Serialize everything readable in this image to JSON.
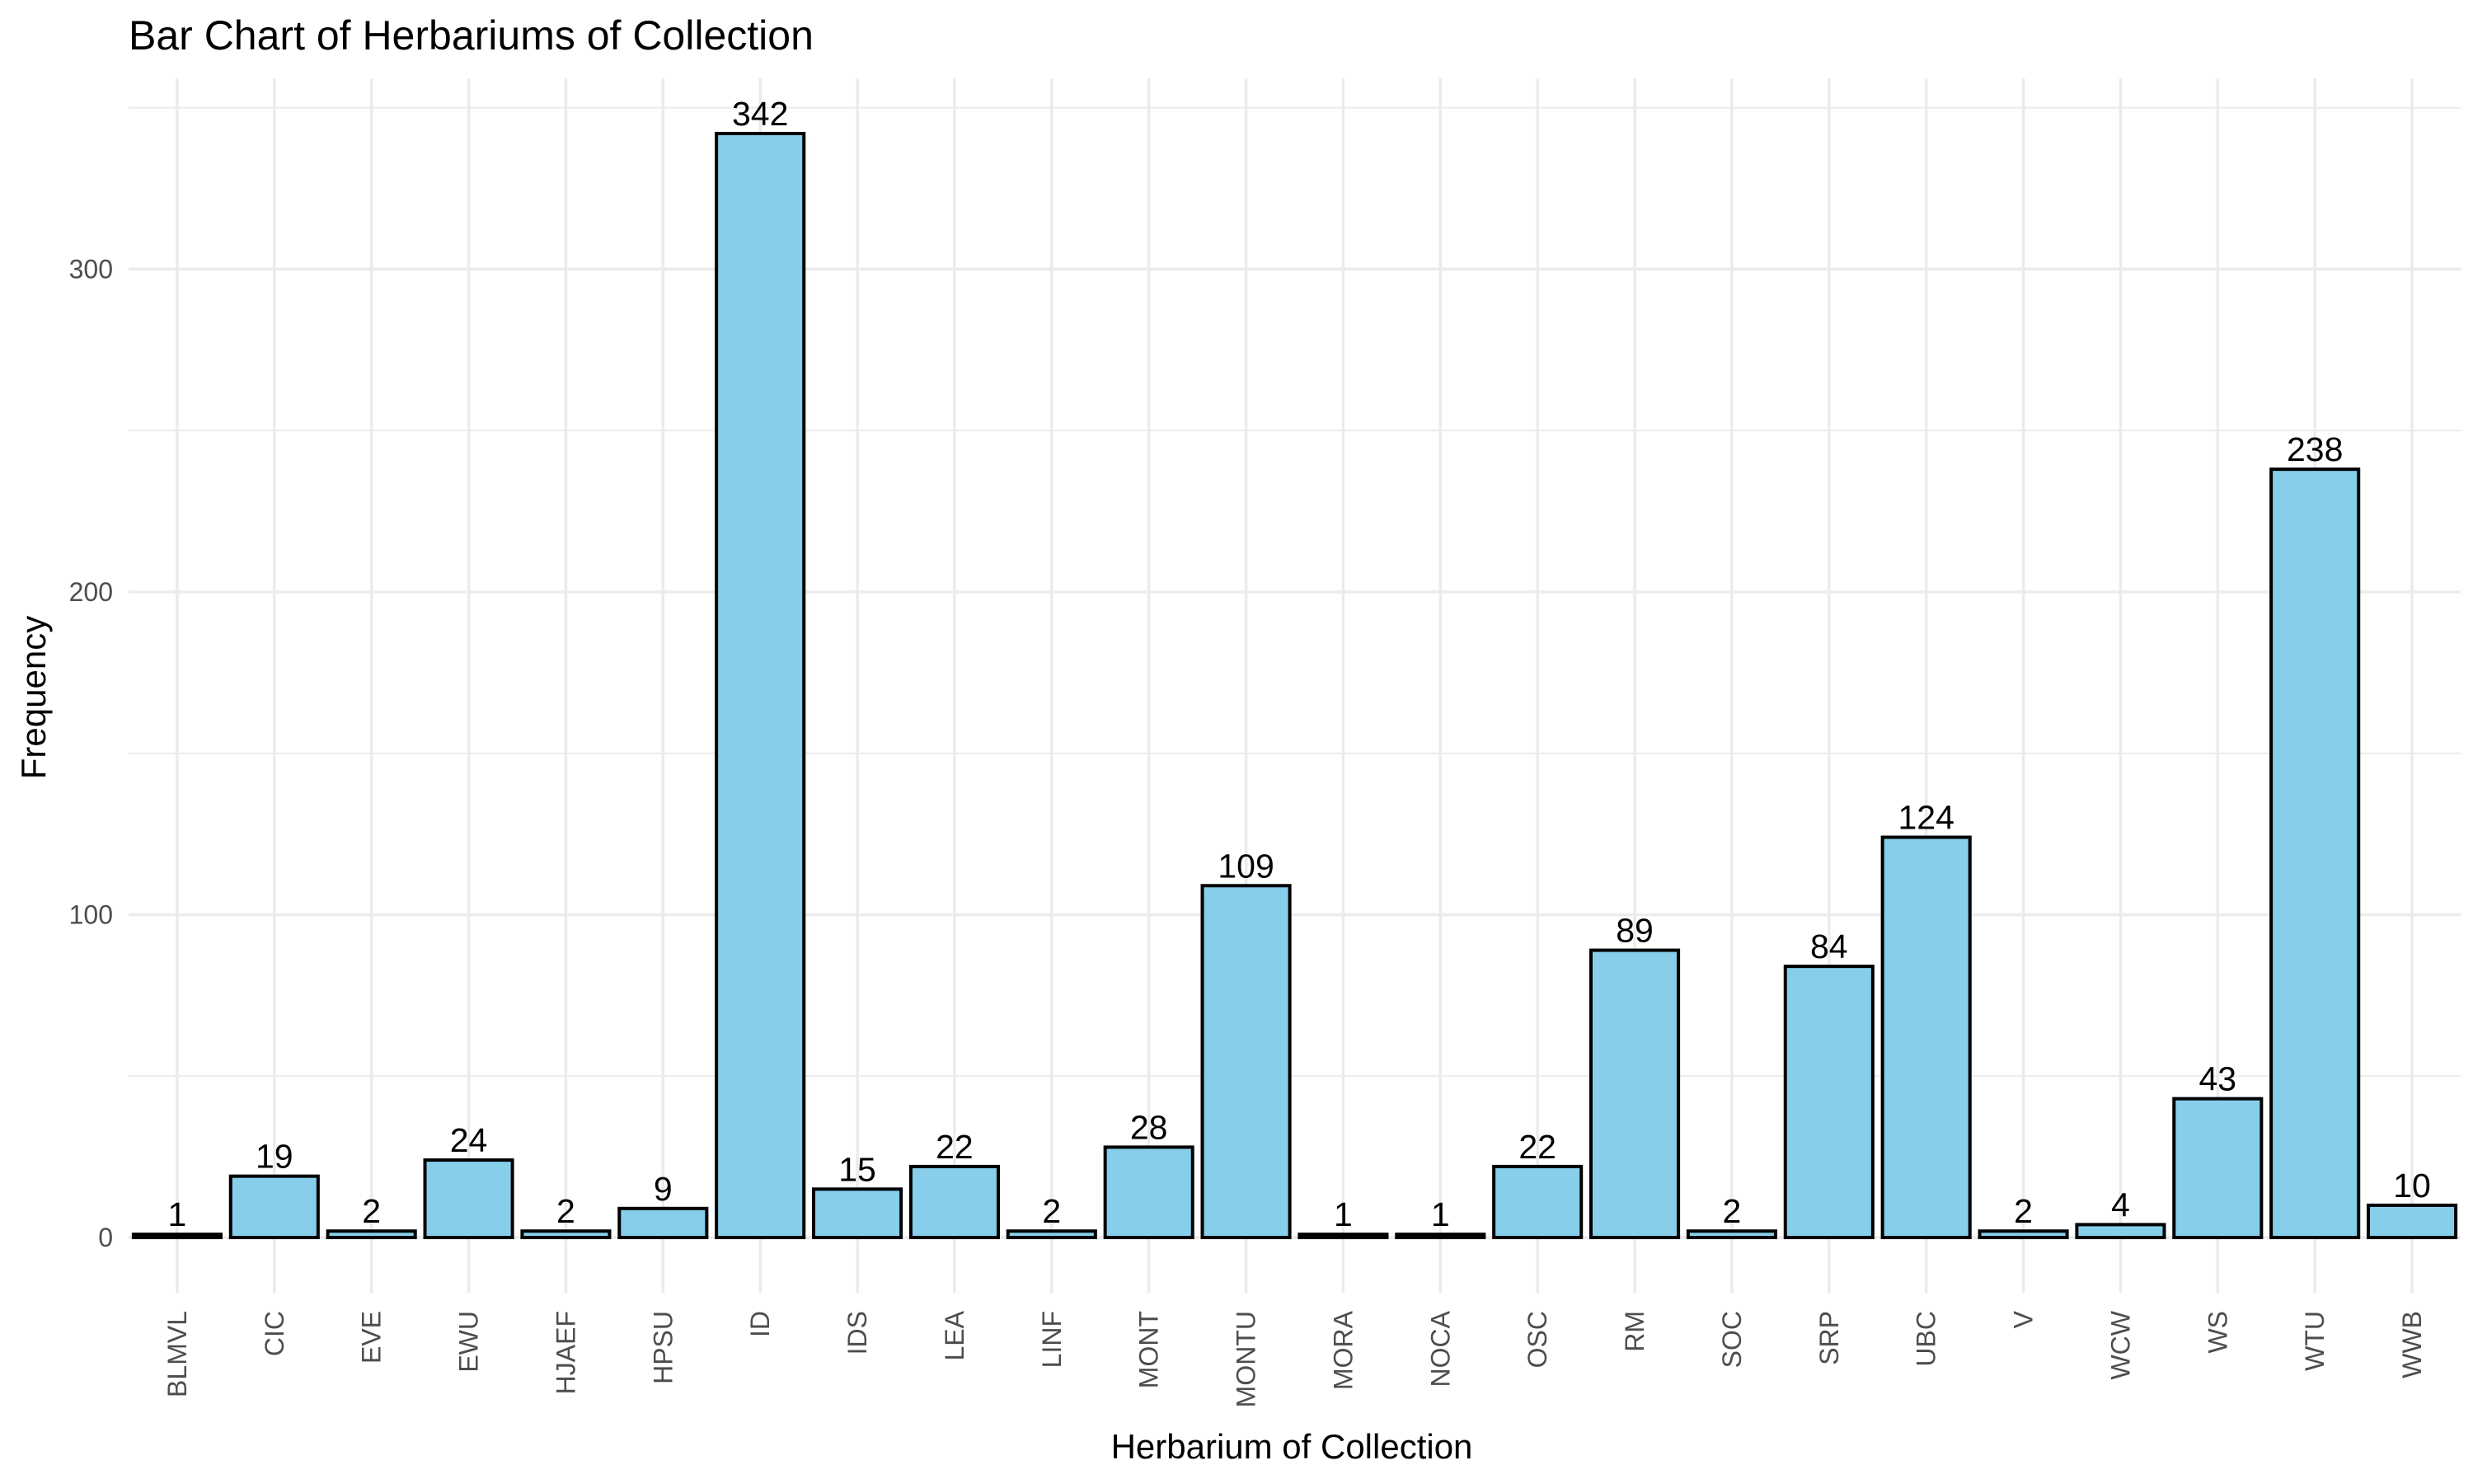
{
  "chart_data": {
    "type": "bar",
    "title": "Bar Chart of Herbariums of Collection",
    "xlabel": "Herbarium of Collection",
    "ylabel": "Frequency",
    "categories": [
      "BLMVL",
      "CIC",
      "EVE",
      "EWU",
      "HJAEF",
      "HPSU",
      "ID",
      "IDS",
      "LEA",
      "LINF",
      "MONT",
      "MONTU",
      "MORA",
      "NOCA",
      "OSC",
      "RM",
      "SOC",
      "SRP",
      "UBC",
      "V",
      "WCW",
      "WS",
      "WTU",
      "WWB"
    ],
    "values": [
      1,
      19,
      2,
      24,
      2,
      9,
      342,
      15,
      22,
      2,
      28,
      109,
      1,
      1,
      22,
      89,
      2,
      84,
      124,
      2,
      4,
      43,
      238,
      10
    ],
    "value_labels": [
      "1",
      "19",
      "2",
      "24",
      "2",
      "9",
      "342",
      "15",
      "22",
      "2",
      "28",
      "109",
      "1",
      "1",
      "22",
      "89",
      "2",
      "84",
      "124",
      "2",
      "4",
      "43",
      "238",
      "10"
    ],
    "y_ticks": [
      0,
      100,
      200,
      300
    ],
    "y_tick_labels": [
      "0",
      "100",
      "200",
      "300"
    ],
    "ylim": [
      -17.1,
      359.1
    ],
    "grid": true,
    "legend": "none",
    "bar_fill": "#87CEEB",
    "bar_stroke": "#000000",
    "grid_color": "#EBEBEB"
  }
}
